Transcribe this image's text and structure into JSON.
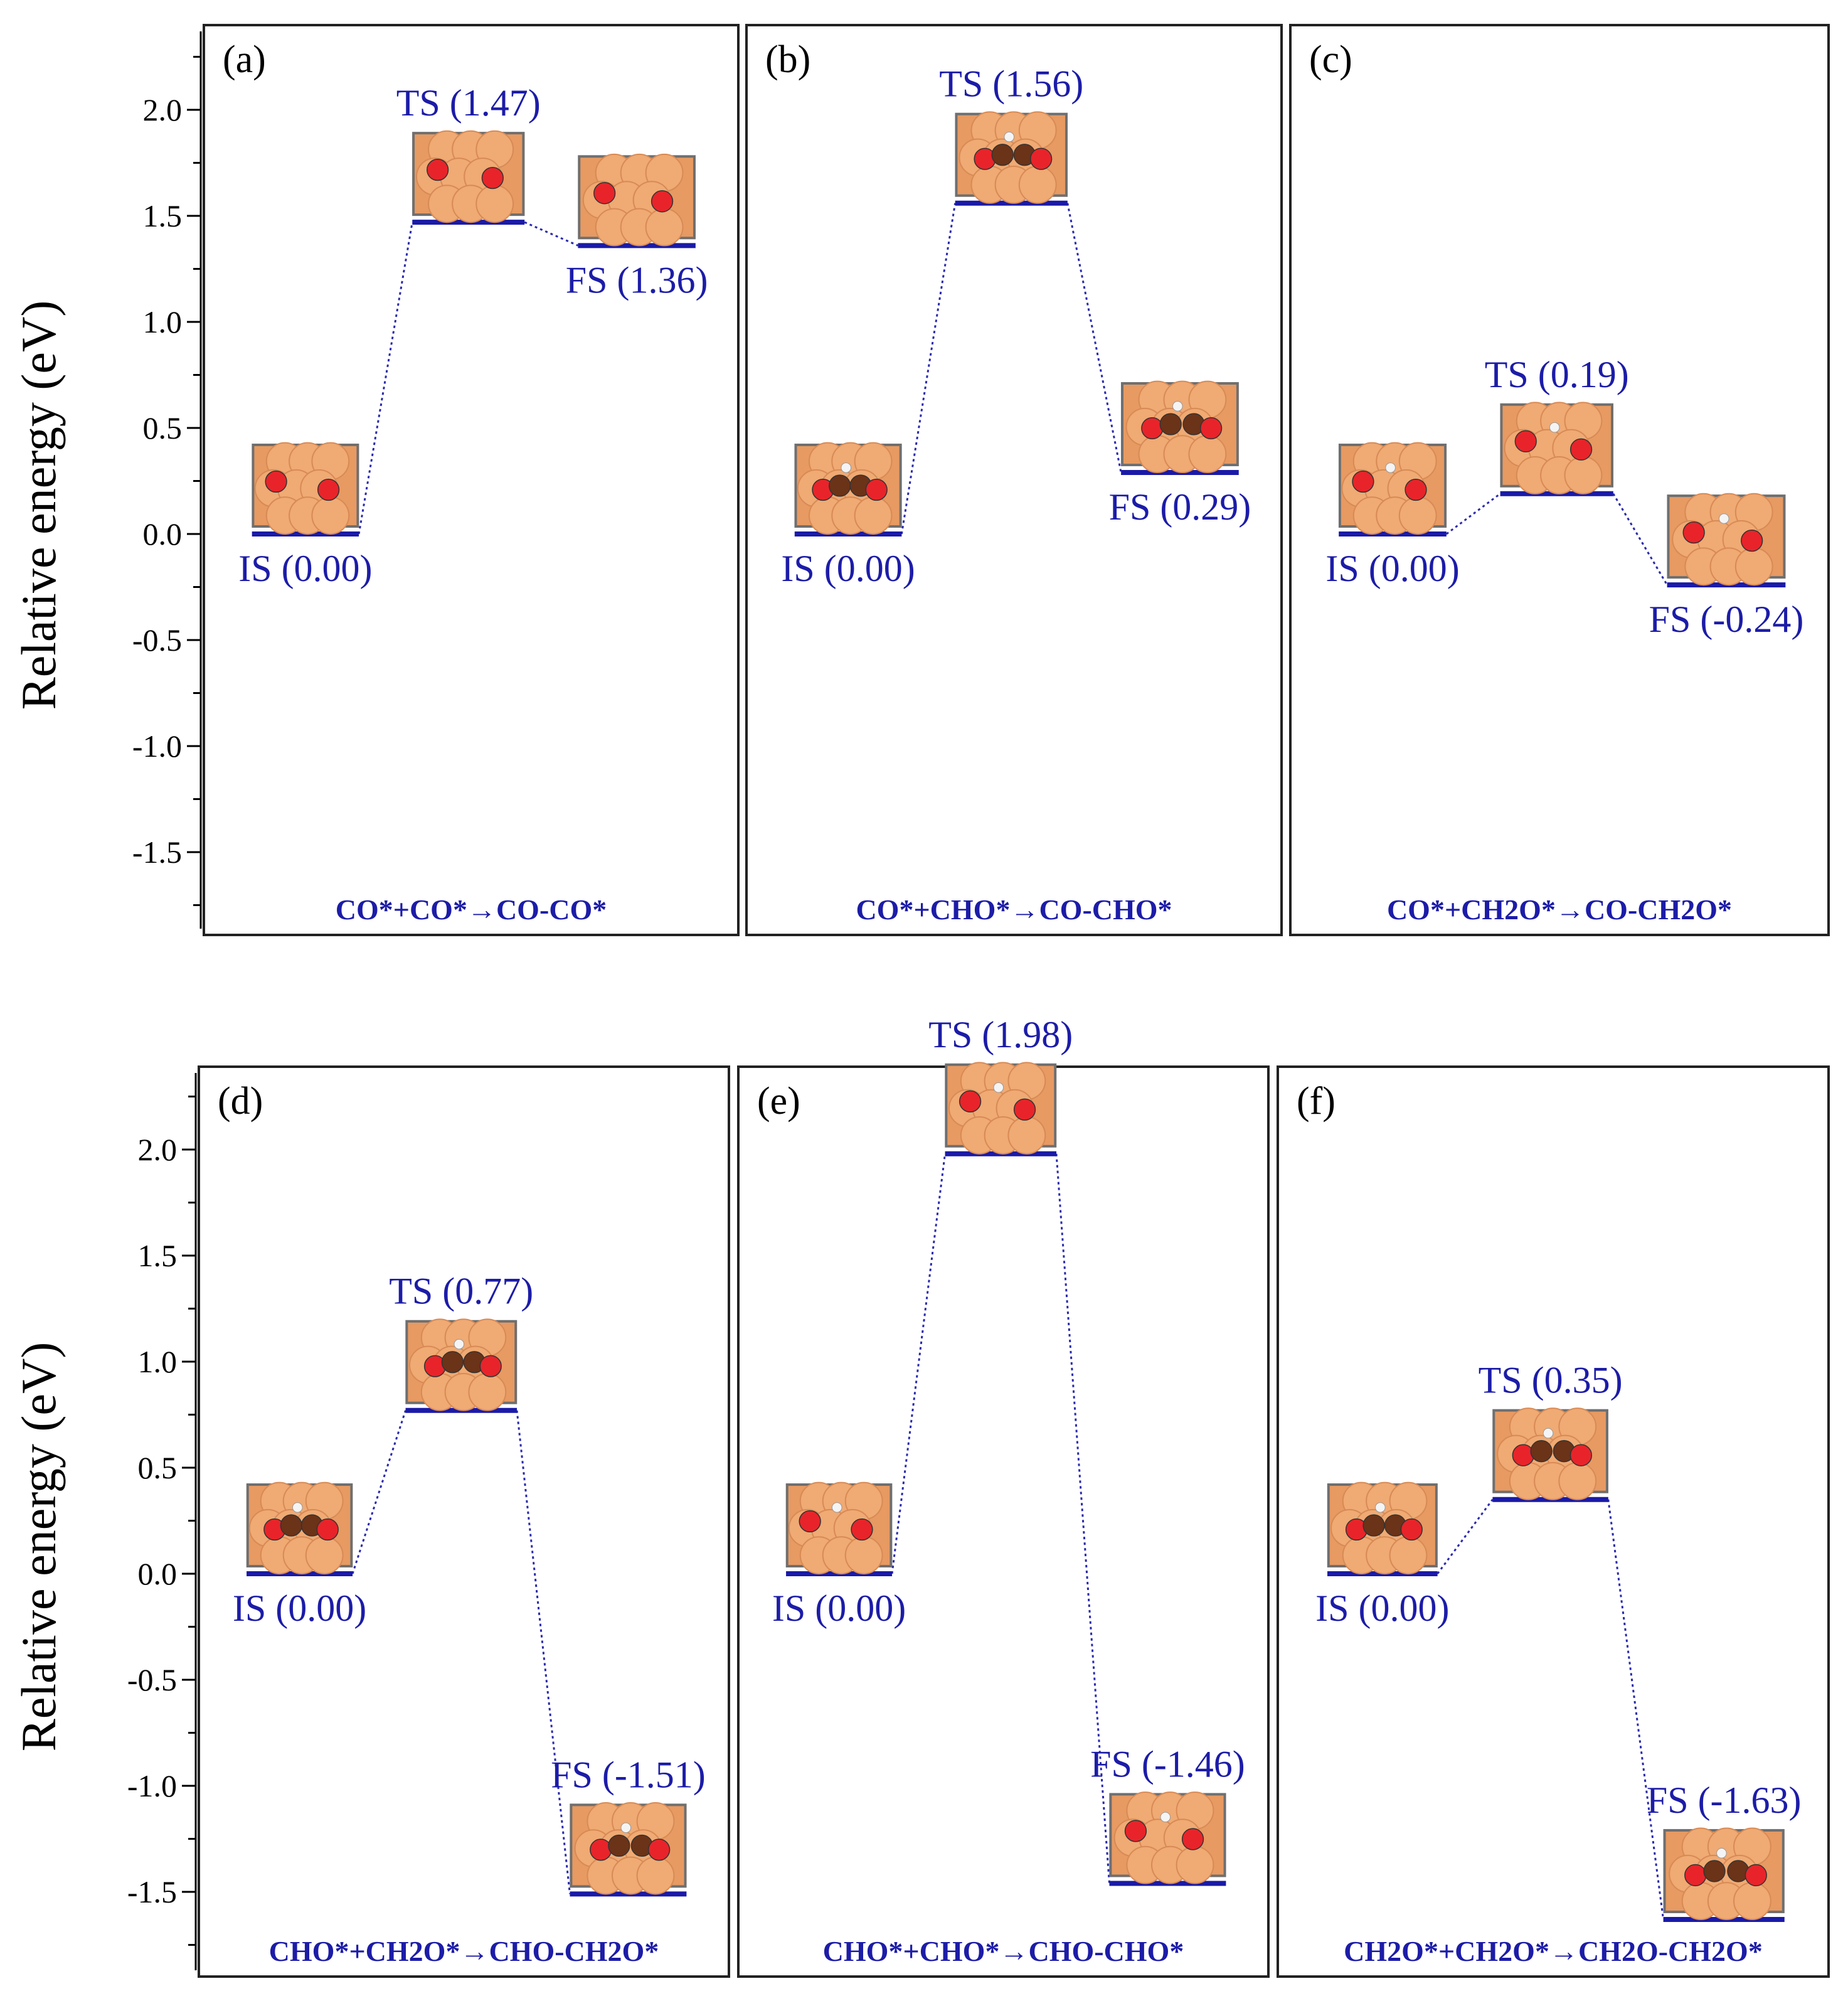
{
  "figure": {
    "y_axis_label": "Relative energy (eV)",
    "colors": {
      "level": "#1a1aa8",
      "text": "#1c1ca8",
      "frame": "#222222"
    }
  },
  "chart_data": [
    {
      "type": "energy-profile",
      "panel": "(a)",
      "reaction": "CO*+CO*→CO-CO*",
      "ylim": [
        -1.75,
        2.35
      ],
      "yticks": [
        "-1.5",
        "-1.0",
        "-0.5",
        "0.0",
        "0.5",
        "1.0",
        "1.5",
        "2.0"
      ],
      "ylabel": "Relative energy (eV)",
      "states": [
        {
          "name": "IS",
          "value": 0.0,
          "label": "IS (0.00)"
        },
        {
          "name": "TS",
          "value": 1.47,
          "label": "TS (1.47)"
        },
        {
          "name": "FS",
          "value": 1.36,
          "label": "FS (1.36)"
        }
      ]
    },
    {
      "type": "energy-profile",
      "panel": "(b)",
      "reaction": "CO*+CHO*→CO-CHO*",
      "ylim": [
        -1.75,
        2.35
      ],
      "yticks": [
        "-1.5",
        "-1.0",
        "-0.5",
        "0.0",
        "0.5",
        "1.0",
        "1.5",
        "2.0"
      ],
      "ylabel": "Relative energy (eV)",
      "states": [
        {
          "name": "IS",
          "value": 0.0,
          "label": "IS (0.00)"
        },
        {
          "name": "TS",
          "value": 1.56,
          "label": "TS (1.56)"
        },
        {
          "name": "FS",
          "value": 0.29,
          "label": "FS (0.29)"
        }
      ]
    },
    {
      "type": "energy-profile",
      "panel": "(c)",
      "reaction": "CO*+CH2O*→CO-CH2O*",
      "ylim": [
        -1.75,
        2.35
      ],
      "yticks": [
        "-1.5",
        "-1.0",
        "-0.5",
        "0.0",
        "0.5",
        "1.0",
        "1.5",
        "2.0"
      ],
      "ylabel": "Relative energy (eV)",
      "states": [
        {
          "name": "IS",
          "value": 0.0,
          "label": "IS (0.00)"
        },
        {
          "name": "TS",
          "value": 0.19,
          "label": "TS (0.19)"
        },
        {
          "name": "FS",
          "value": -0.24,
          "label": "FS (-0.24)"
        }
      ]
    },
    {
      "type": "energy-profile",
      "panel": "(d)",
      "reaction": "CHO*+CH2O*→CHO-CH2O*",
      "ylim": [
        -1.75,
        2.35
      ],
      "yticks": [
        "-1.5",
        "-1.0",
        "-0.5",
        "0.0",
        "0.5",
        "1.0",
        "1.5",
        "2.0"
      ],
      "ylabel": "Relative energy (eV)",
      "states": [
        {
          "name": "IS",
          "value": 0.0,
          "label": "IS (0.00)"
        },
        {
          "name": "TS",
          "value": 0.77,
          "label": "TS (0.77)"
        },
        {
          "name": "FS",
          "value": -1.51,
          "label": "FS (-1.51)"
        }
      ]
    },
    {
      "type": "energy-profile",
      "panel": "(e)",
      "reaction": "CHO*+CHO*→CHO-CHO*",
      "ylim": [
        -1.75,
        2.35
      ],
      "yticks": [
        "-1.5",
        "-1.0",
        "-0.5",
        "0.0",
        "0.5",
        "1.0",
        "1.5",
        "2.0"
      ],
      "ylabel": "Relative energy (eV)",
      "states": [
        {
          "name": "IS",
          "value": 0.0,
          "label": "IS (0.00)"
        },
        {
          "name": "TS",
          "value": 1.98,
          "label": "TS (1.98)"
        },
        {
          "name": "FS",
          "value": -1.46,
          "label": "FS (-1.46)"
        }
      ]
    },
    {
      "type": "energy-profile",
      "panel": "(f)",
      "reaction": "CH2O*+CH2O*→CH2O-CH2O*",
      "ylim": [
        -1.75,
        2.35
      ],
      "yticks": [
        "-1.5",
        "-1.0",
        "-0.5",
        "0.0",
        "0.5",
        "1.0",
        "1.5",
        "2.0"
      ],
      "ylabel": "Relative energy (eV)",
      "states": [
        {
          "name": "IS",
          "value": 0.0,
          "label": "IS (0.00)"
        },
        {
          "name": "TS",
          "value": 0.35,
          "label": "TS (0.35)"
        },
        {
          "name": "FS",
          "value": -1.63,
          "label": "FS (-1.63)"
        }
      ]
    }
  ]
}
